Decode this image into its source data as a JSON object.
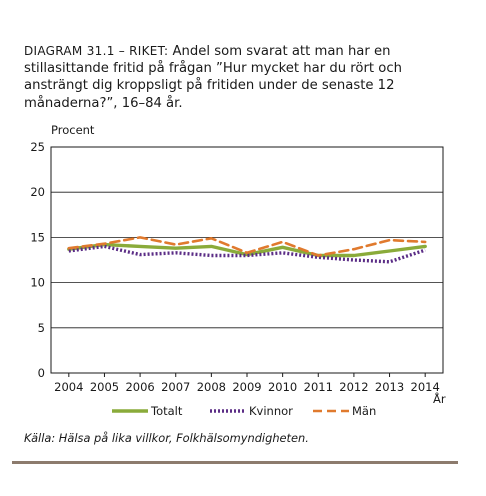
{
  "caption": {
    "lead": "DIAGRAM 31.1 – RIKET:",
    "text": " Andel som svarat att man har en stillasittande fritid på frågan ”Hur mycket har du rört och ansträngt dig kroppsligt på fritiden under de senaste 12 månaderna?”, 16–84 år."
  },
  "source": "Källa: Hälsa på lika villkor, Folkhälsomyndigheten.",
  "chart_data": {
    "type": "line",
    "ylabel": "Procent",
    "xlabel": "År",
    "ylim": [
      0,
      25
    ],
    "yticks": [
      0,
      5,
      10,
      15,
      20,
      25
    ],
    "grid": "horizontal",
    "legend_position": "bottom",
    "x": [
      "2004",
      "2005",
      "2006",
      "2007",
      "2008",
      "2009",
      "2010",
      "2011",
      "2012",
      "2013",
      "2014"
    ],
    "series": [
      {
        "name": "Totalt",
        "color": "#8aab3a",
        "style": "solid",
        "values": [
          13.7,
          14.2,
          14.0,
          13.8,
          14.0,
          13.1,
          13.9,
          13.0,
          13.0,
          13.5,
          14.0
        ]
      },
      {
        "name": "Kvinnor",
        "color": "#5b2d86",
        "style": "dotted",
        "values": [
          13.5,
          14.0,
          13.1,
          13.3,
          13.0,
          13.0,
          13.3,
          12.8,
          12.5,
          12.3,
          13.6
        ]
      },
      {
        "name": "Män",
        "color": "#e07a2e",
        "style": "dashed",
        "values": [
          13.8,
          14.3,
          15.0,
          14.2,
          14.9,
          13.3,
          14.5,
          13.0,
          13.7,
          14.7,
          14.5
        ]
      }
    ]
  }
}
